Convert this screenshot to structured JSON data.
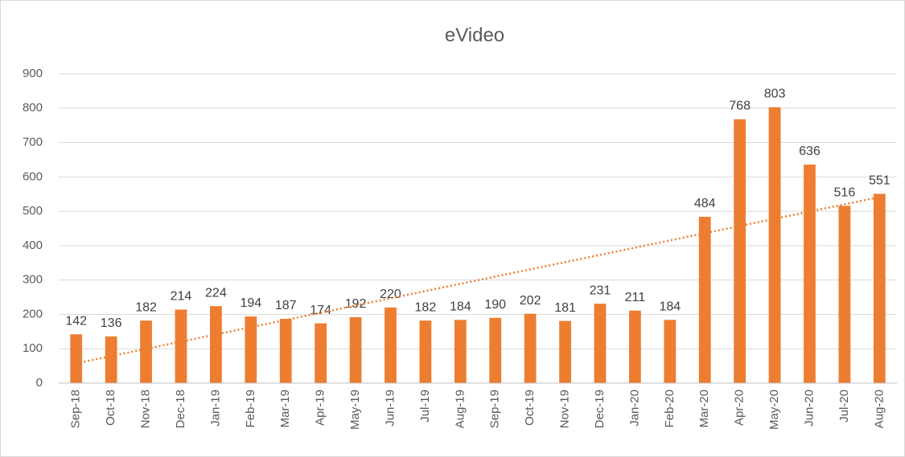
{
  "chart_data": {
    "type": "bar",
    "title": "eVideo",
    "categories": [
      "Sep-18",
      "Oct-18",
      "Nov-18",
      "Dec-18",
      "Jan-19",
      "Feb-19",
      "Mar-19",
      "Apr-19",
      "May-19",
      "Jun-19",
      "Jul-19",
      "Aug-19",
      "Sep-19",
      "Oct-19",
      "Nov-19",
      "Dec-19",
      "Jan-20",
      "Feb-20",
      "Mar-20",
      "Apr-20",
      "May-20",
      "Jun-20",
      "Jul-20",
      "Aug-20"
    ],
    "values": [
      142,
      136,
      182,
      214,
      224,
      194,
      187,
      174,
      192,
      220,
      182,
      184,
      190,
      202,
      181,
      231,
      211,
      184,
      484,
      768,
      803,
      636,
      516,
      551
    ],
    "color": "#ed7d31",
    "ylim": [
      0,
      900
    ],
    "yticks": [
      0,
      100,
      200,
      300,
      400,
      500,
      600,
      700,
      800,
      900
    ],
    "grid": true,
    "trendline": "linear"
  }
}
